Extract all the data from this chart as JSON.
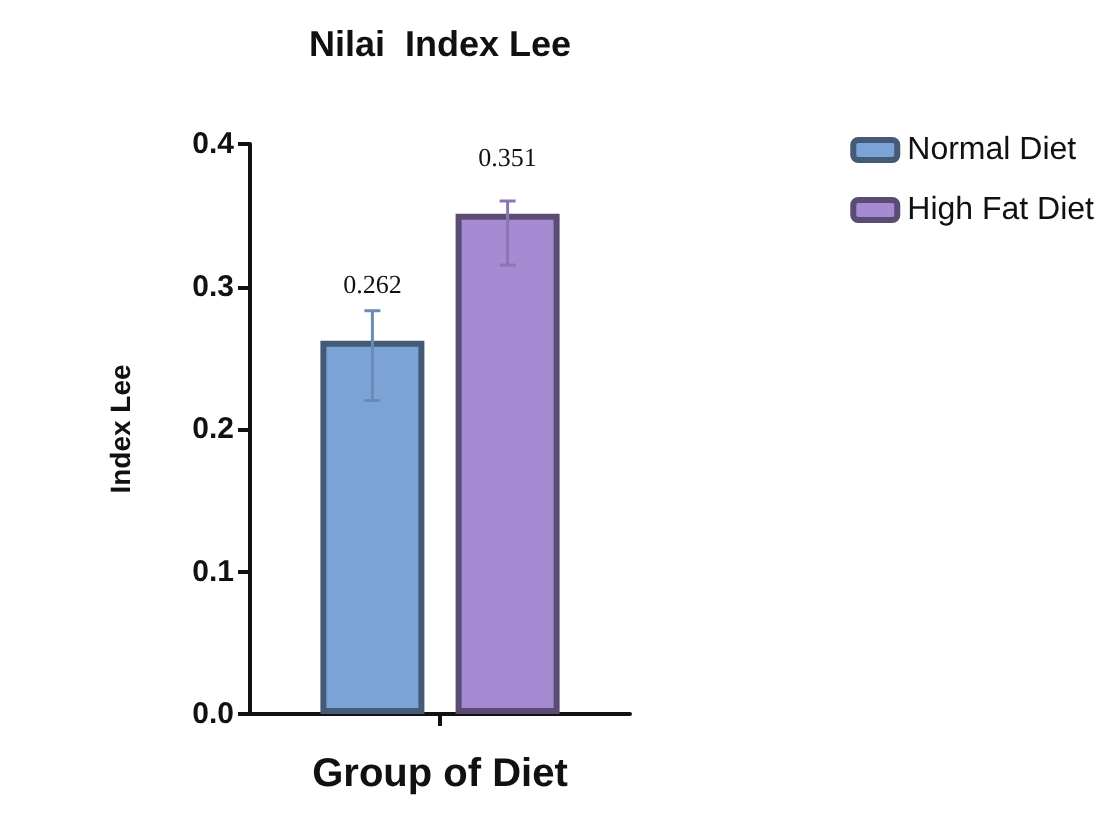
{
  "chart_data": {
    "type": "bar",
    "title": "Nilai  Index Lee",
    "xlabel": "Group of Diet",
    "ylabel": "Index Lee",
    "categories": [
      null
    ],
    "series": [
      {
        "name": "Normal Diet",
        "color": "#7ba3d6",
        "values": [
          0.262
        ],
        "errors": [
          [
            0.22,
            0.283
          ]
        ]
      },
      {
        "name": "High Fat Diet",
        "color": "#a68ad2",
        "values": [
          0.351
        ],
        "errors": [
          [
            0.315,
            0.36
          ]
        ]
      }
    ],
    "ylim": [
      0,
      0.4
    ],
    "yticks": [
      {
        "value": 0,
        "label": "0.0"
      },
      0.1,
      0.2,
      0.3,
      0.4
    ],
    "grid": false,
    "legend": "top right",
    "data_labels": true
  }
}
